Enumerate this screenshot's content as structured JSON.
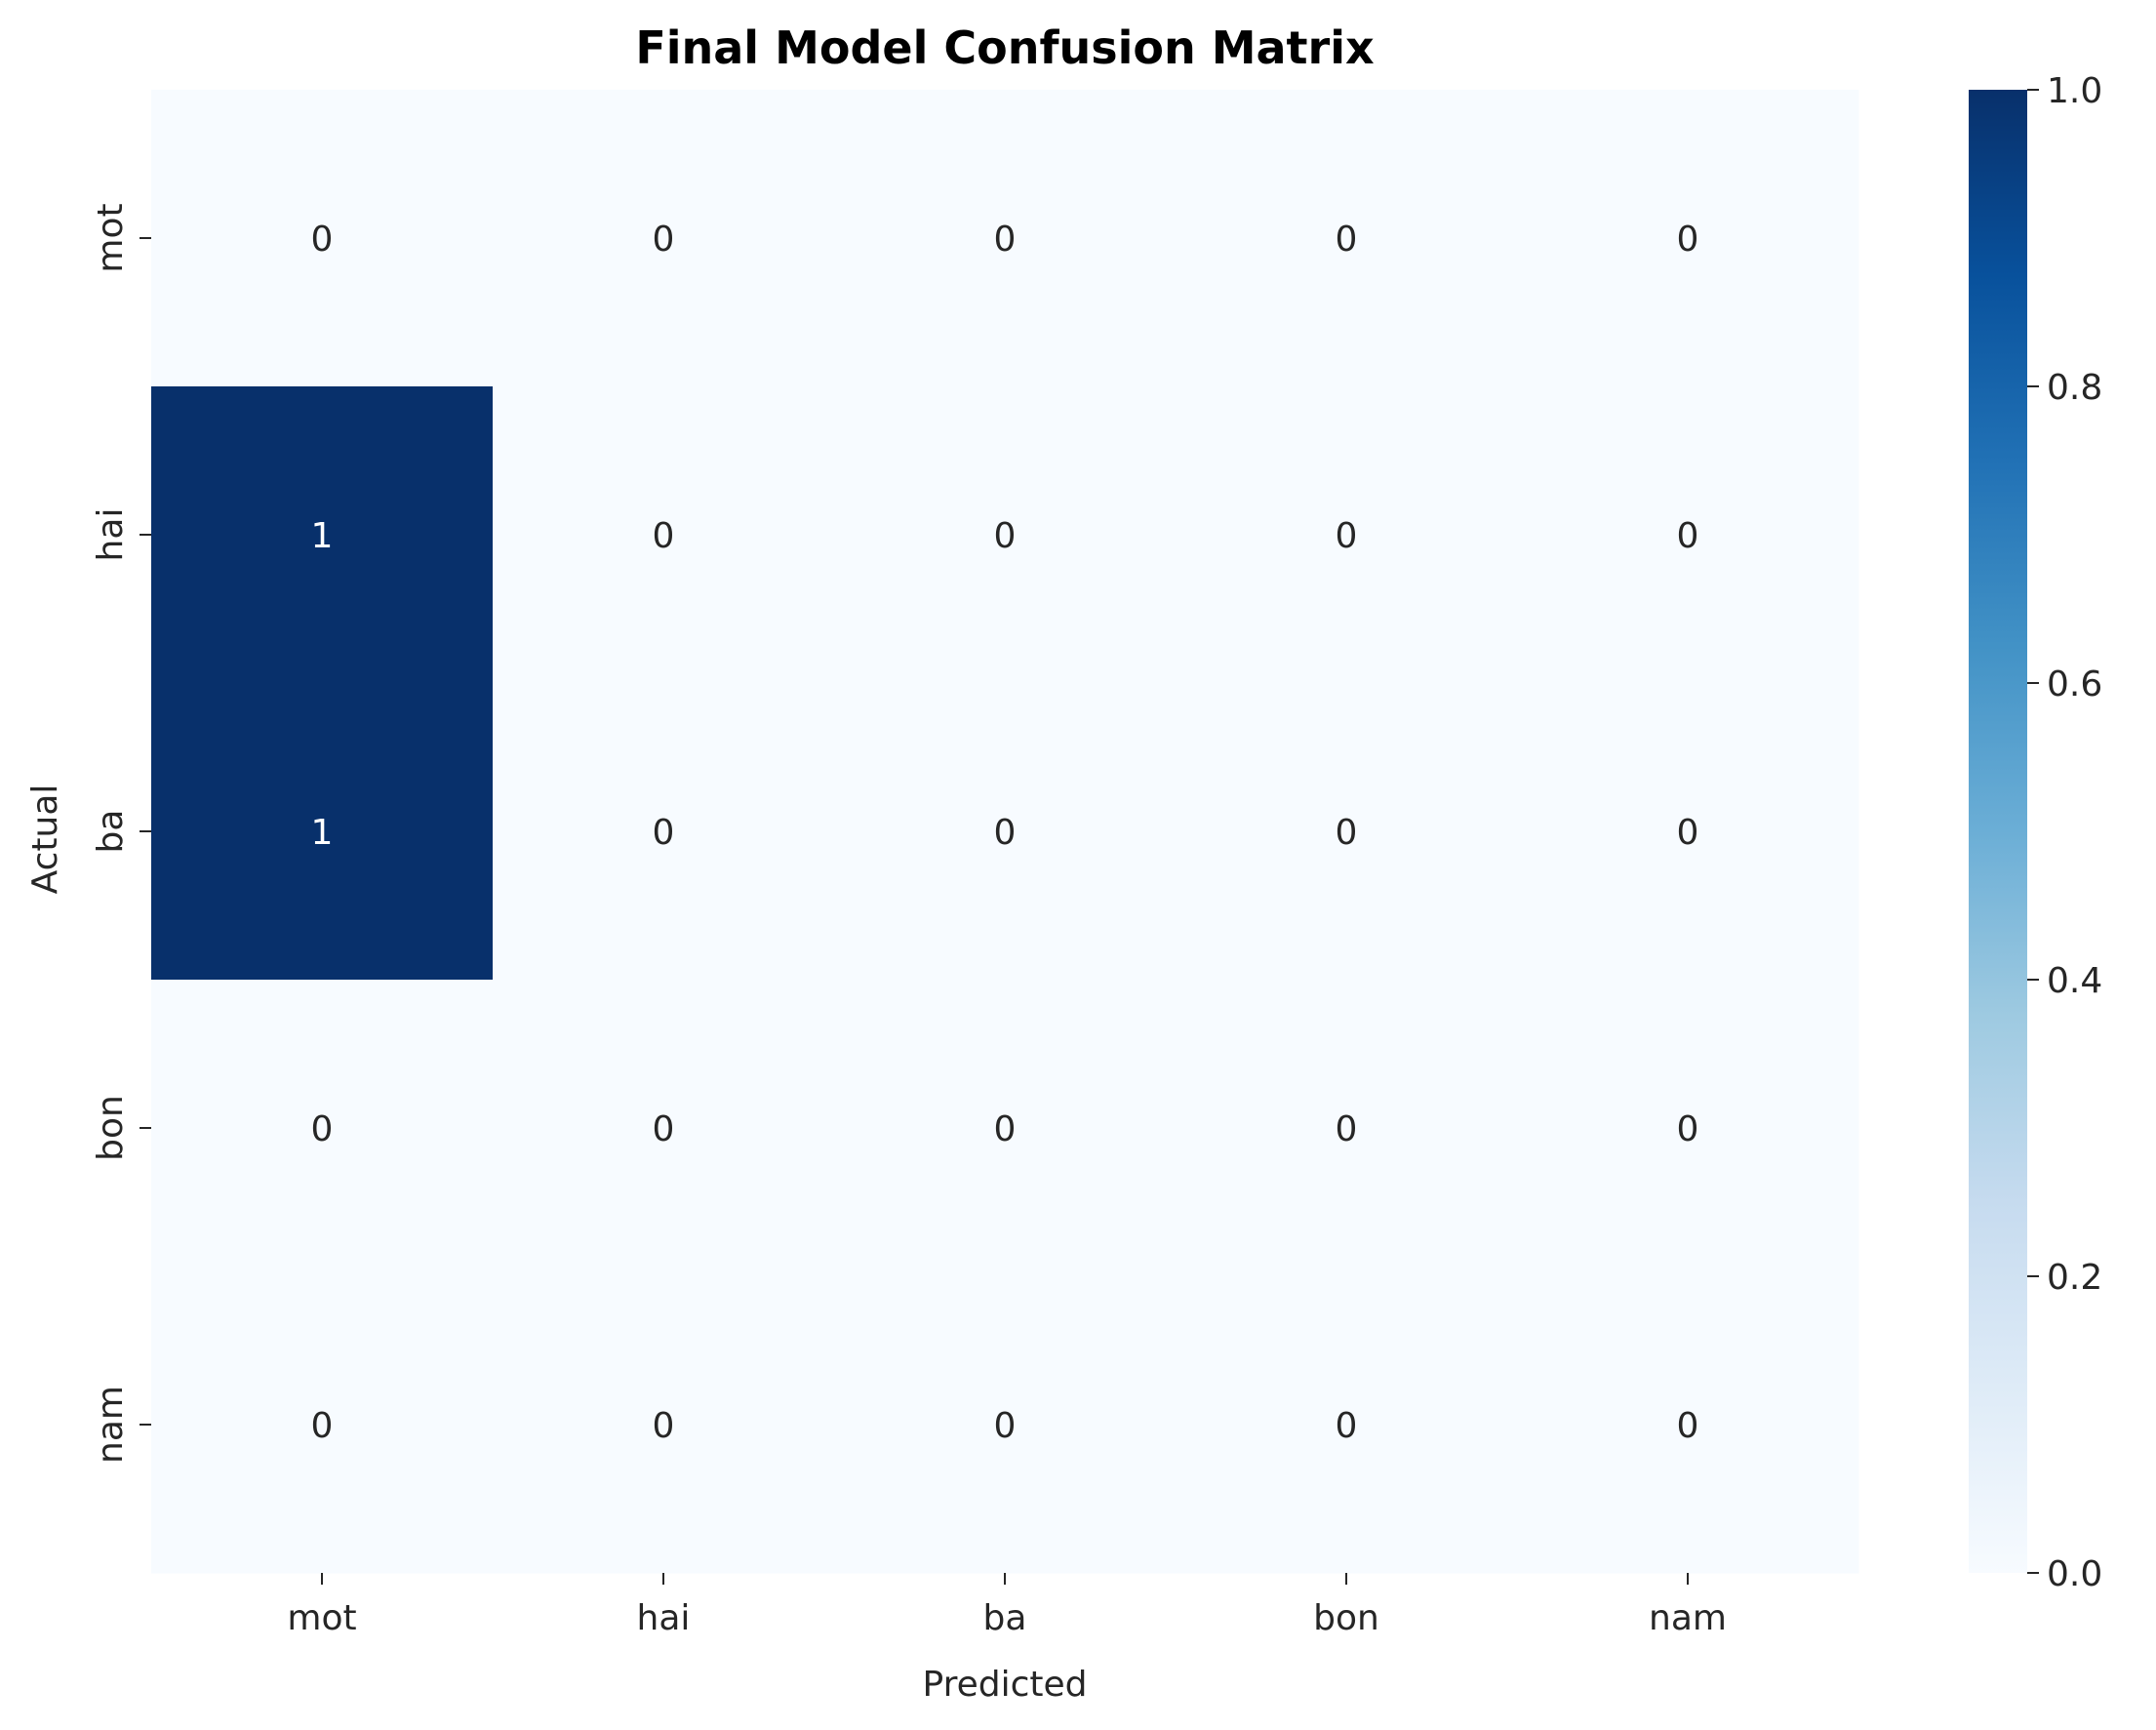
{
  "chart_data": {
    "type": "heatmap",
    "title": "Final Model Confusion Matrix",
    "xlabel": "Predicted",
    "ylabel": "Actual",
    "x_categories": [
      "mot",
      "hai",
      "ba",
      "bon",
      "nam"
    ],
    "y_categories": [
      "mot",
      "hai",
      "ba",
      "bon",
      "nam"
    ],
    "values": [
      [
        0,
        0,
        0,
        0,
        0
      ],
      [
        1,
        0,
        0,
        0,
        0
      ],
      [
        1,
        0,
        0,
        0,
        0
      ],
      [
        0,
        0,
        0,
        0,
        0
      ],
      [
        0,
        0,
        0,
        0,
        0
      ]
    ],
    "colormap": "Blues",
    "colorbar": {
      "range": [
        0.0,
        1.0
      ],
      "ticks": [
        "0.0",
        "0.2",
        "0.4",
        "0.6",
        "0.8",
        "1.0"
      ]
    },
    "colors": {
      "low": "#f7fbff",
      "high": "#08306b"
    }
  }
}
